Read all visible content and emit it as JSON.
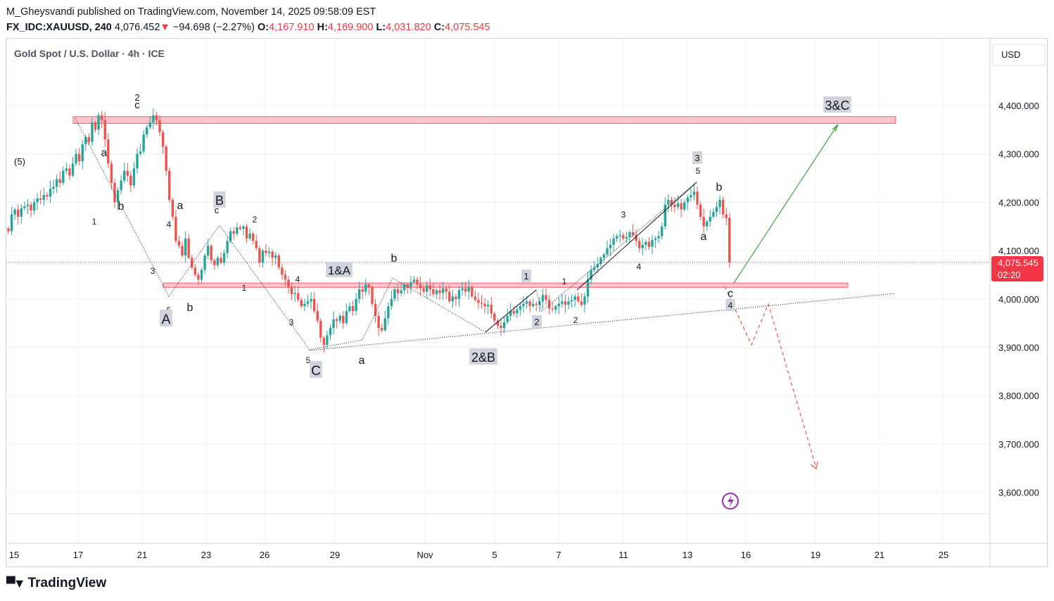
{
  "header": {
    "line1": "M_Gheysvandi published on TradingView.com, November 14, 2025 09:58:09 EST",
    "symbol": "FX_IDC:XAUUSD, 240",
    "last": "4,076.452",
    "arrow": "▼",
    "change": "−94.698 (−2.27%)",
    "o_label": "O:",
    "o_value": "4,167.910",
    "h_label": "H:",
    "h_value": "4,169.900",
    "l_label": "L:",
    "l_value": "4,031.820",
    "c_label": "C:",
    "c_value": "4,075.545"
  },
  "legend": "Gold Spot / U.S. Dollar · 4h · ICE",
  "currency": "USD",
  "price_tag": {
    "value": "4,075.545",
    "countdown": "02:20"
  },
  "brand": "TradingView",
  "colors": {
    "up": "#26a69a",
    "down": "#ef5350",
    "zone_fill": "#f8c6cc",
    "zone_stroke": "#f0606e",
    "projection_up": "#43a047",
    "projection_down": "#ef5350",
    "accent": "#9c27b0"
  },
  "chart_data": {
    "type": "candlestick",
    "title": "Gold Spot / U.S. Dollar · 4h · ICE",
    "ylim": [
      3550,
      4505
    ],
    "yticks": [
      3600,
      3700,
      3800,
      3900,
      4000,
      4100,
      4200,
      4300,
      4400
    ],
    "ytick_labels": [
      "3,600.000",
      "3,700.000",
      "3,800.000",
      "3,900.000",
      "4,000.000",
      "4,100.000",
      "4,200.000",
      "4,300.000",
      "4,400.000"
    ],
    "x_labels": [
      "15",
      "17",
      "21",
      "23",
      "26",
      "29",
      "Nov",
      "5",
      "7",
      "11",
      "13",
      "16",
      "19",
      "21",
      "25"
    ],
    "current_price": 4075.545,
    "closes": [
      4140,
      4175,
      4185,
      4170,
      4188,
      4192,
      4195,
      4183,
      4200,
      4208,
      4205,
      4215,
      4212,
      4228,
      4232,
      4248,
      4240,
      4265,
      4270,
      4255,
      4280,
      4300,
      4285,
      4320,
      4335,
      4325,
      4365,
      4350,
      4380,
      4370,
      4330,
      4280,
      4240,
      4200,
      4225,
      4245,
      4265,
      4255,
      4235,
      4270,
      4300,
      4305,
      4340,
      4355,
      4365,
      4380,
      4370,
      4345,
      4315,
      4265,
      4205,
      4170,
      4120,
      4110,
      4090,
      4125,
      4085,
      4065,
      4050,
      4040,
      4060,
      4090,
      4110,
      4080,
      4070,
      4085,
      4075,
      4095,
      4120,
      4140,
      4135,
      4148,
      4145,
      4150,
      4125,
      4135,
      4120,
      4105,
      4075,
      4100,
      4095,
      4098,
      4085,
      4090,
      4065,
      4050,
      4040,
      4025,
      4010,
      4012,
      3998,
      3985,
      3990,
      3995,
      4000,
      3975,
      3955,
      3920,
      3905,
      3925,
      3940,
      3958,
      3955,
      3965,
      3950,
      3975,
      3985,
      3975,
      4000,
      4020,
      4015,
      4030,
      4025,
      3990,
      3965,
      3940,
      3935,
      3960,
      3985,
      4000,
      4020,
      4012,
      4018,
      4030,
      4025,
      4035,
      4040,
      4030,
      4022,
      4015,
      4028,
      4020,
      4010,
      4018,
      4012,
      4022,
      4015,
      3995,
      4005,
      4000,
      4018,
      4022,
      4015,
      4025,
      4005,
      3998,
      3992,
      3990,
      3985,
      3988,
      3970,
      3955,
      3945,
      3940,
      3952,
      3965,
      3975,
      3970,
      3978,
      3985,
      3990,
      3995,
      3985,
      3990,
      3988,
      3995,
      4008,
      3998,
      3980,
      3978,
      3985,
      3990,
      3995,
      3988,
      3995,
      3998,
      4005,
      3995,
      3988,
      4005,
      4040,
      4060,
      4065,
      4072,
      4085,
      4092,
      4105,
      4112,
      4125,
      4130,
      4132,
      4125,
      4128,
      4138,
      4132,
      4120,
      4105,
      4112,
      4118,
      4108,
      4122,
      4125,
      4130,
      4150,
      4195,
      4205,
      4195,
      4190,
      4198,
      4185,
      4200,
      4210,
      4215,
      4222,
      4195,
      4170,
      4150,
      4160,
      4170,
      4180,
      4190,
      4205,
      4175,
      4167,
      4075.5
    ],
    "annotations": {
      "wave_labels": [
        "(5)",
        "2",
        "c",
        "a",
        "b",
        "1",
        "4",
        "a",
        "3",
        "5",
        "A",
        "b",
        "B",
        "c",
        "2",
        "1",
        "3",
        "4",
        "5",
        "C",
        "1&A",
        "b",
        "a",
        "1",
        "2",
        "c",
        "2&B",
        "1",
        "2",
        "3",
        "4",
        "3",
        "5",
        "b",
        "a",
        "c",
        "4",
        "3&C"
      ],
      "resistance_zone": [
        4363,
        4377
      ],
      "support_zone": [
        4024,
        4033
      ],
      "projection_target_up": 4365,
      "projection_target_down": 3650
    }
  }
}
